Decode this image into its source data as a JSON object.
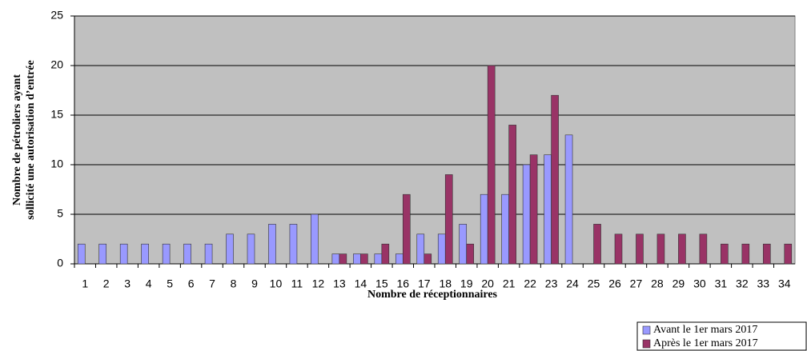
{
  "chart_data": {
    "type": "bar",
    "ylabel": [
      "Nombre de pétroliers ayant",
      "sollicité une autorisation d’entrée"
    ],
    "xlabel": "Nombre de réceptionnaires",
    "categories": [
      "1",
      "2",
      "3",
      "4",
      "5",
      "6",
      "7",
      "8",
      "9",
      "10",
      "11",
      "12",
      "13",
      "14",
      "15",
      "16",
      "17",
      "18",
      "19",
      "20",
      "21",
      "22",
      "23",
      "24",
      "25",
      "26",
      "27",
      "28",
      "29",
      "30",
      "31",
      "32",
      "33",
      "34"
    ],
    "series": [
      {
        "name": "Avant le 1er mars 2017",
        "color": "#9999ff",
        "values": [
          2,
          2,
          2,
          2,
          2,
          2,
          2,
          3,
          3,
          4,
          4,
          5,
          1,
          1,
          1,
          1,
          3,
          3,
          4,
          7,
          7,
          10,
          11,
          13,
          0,
          0,
          0,
          0,
          0,
          0,
          0,
          0,
          0,
          0
        ]
      },
      {
        "name": "Après le 1er mars 2017",
        "color": "#993366",
        "values": [
          0,
          0,
          0,
          0,
          0,
          0,
          0,
          0,
          0,
          0,
          0,
          0,
          1,
          1,
          2,
          7,
          1,
          9,
          2,
          20,
          14,
          11,
          17,
          0,
          4,
          3,
          3,
          3,
          3,
          3,
          2,
          2,
          2,
          2
        ]
      }
    ],
    "ylim": [
      0,
      25
    ],
    "yticks": [
      0,
      5,
      10,
      15,
      20,
      25
    ],
    "grid": true,
    "plot_background": "#c0c0c0",
    "legend": "lower right"
  }
}
